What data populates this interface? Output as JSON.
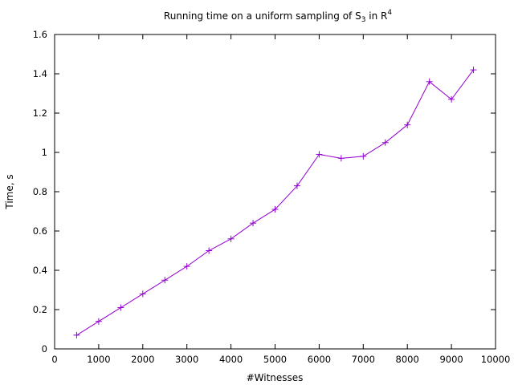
{
  "chart_data": {
    "type": "line",
    "title": {
      "main": "Running time on a uniform sampling of S",
      "subscript": "3",
      "middle": " in R",
      "superscript": "4"
    },
    "xlabel": "#Witnesses",
    "ylabel": "Time, s",
    "xlim": [
      0,
      10000
    ],
    "ylim": [
      0,
      1.6
    ],
    "xticks": [
      0,
      1000,
      2000,
      3000,
      4000,
      5000,
      6000,
      7000,
      8000,
      9000,
      10000
    ],
    "yticks": [
      0,
      0.2,
      0.4,
      0.6,
      0.8,
      1,
      1.2,
      1.4,
      1.6
    ],
    "xtick_labels": [
      "0",
      "1000",
      "2000",
      "3000",
      "4000",
      "5000",
      "6000",
      "7000",
      "8000",
      "9000",
      "10000"
    ],
    "ytick_labels": [
      "0",
      "0.2",
      "0.4",
      "0.6",
      "0.8",
      "1",
      "1.2",
      "1.4",
      "1.6"
    ],
    "grid": false,
    "legend": false,
    "series": [
      {
        "color": "#9400d3",
        "marker": "plus",
        "x": [
          500,
          1000,
          1500,
          2000,
          2500,
          3000,
          3500,
          4000,
          4500,
          5000,
          5500,
          6000,
          6500,
          7000,
          7500,
          8000,
          8500,
          9000,
          9500
        ],
        "y": [
          0.07,
          0.14,
          0.21,
          0.28,
          0.35,
          0.42,
          0.5,
          0.56,
          0.64,
          0.71,
          0.83,
          0.99,
          0.97,
          0.98,
          1.05,
          1.14,
          1.36,
          1.27,
          1.42
        ]
      }
    ]
  }
}
